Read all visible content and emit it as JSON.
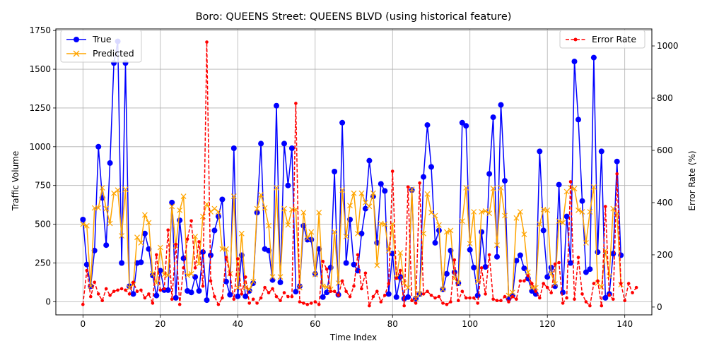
{
  "chart_data": {
    "type": "line",
    "title": "Boro: QUEENS Street: QUEENS BLVD (using historical feature)",
    "xlabel": "Time Index",
    "ylabel": "Traffic Volume",
    "y2label": "Error Rate (%)",
    "xlim": [
      -7,
      147
    ],
    "ylim": [
      -85,
      1760
    ],
    "y2lim": [
      -30,
      1065
    ],
    "xticks": [
      0,
      20,
      40,
      60,
      80,
      100,
      120,
      140
    ],
    "yticks": [
      0,
      250,
      500,
      750,
      1000,
      1250,
      1500,
      1750
    ],
    "y2ticks": [
      0,
      200,
      400,
      600,
      800,
      1000
    ],
    "grid": true,
    "legend_left_placement": "top-left",
    "legend_right_placement": "top-right",
    "colors": {
      "true": "#0000ff",
      "predicted": "#ffa500",
      "error": "#ff0000"
    },
    "series": [
      {
        "name": "True",
        "values": [
          530,
          240,
          100,
          330,
          1000,
          670,
          365,
          895,
          1540,
          1680,
          250,
          1540,
          100,
          50,
          250,
          255,
          440,
          340,
          170,
          40,
          200,
          75,
          75,
          640,
          25,
          525,
          280,
          70,
          60,
          160,
          70,
          320,
          10,
          300,
          460,
          550,
          660,
          130,
          45,
          990,
          35,
          300,
          35,
          70,
          120,
          575,
          1020,
          340,
          330,
          140,
          1265,
          125,
          1020,
          750,
          990,
          65,
          100,
          490,
          400,
          400,
          180,
          340,
          30,
          60,
          220,
          840,
          45,
          1155,
          250,
          530,
          240,
          200,
          440,
          600,
          910,
          680,
          380,
          760,
          715,
          50,
          310,
          30,
          160,
          20,
          30,
          720,
          20,
          50,
          805,
          1140,
          870,
          380,
          460,
          80,
          180,
          330,
          190,
          120,
          1155,
          1135,
          335,
          220,
          40,
          450,
          225,
          825,
          1190,
          290,
          1270,
          780,
          20,
          40,
          265,
          300,
          215,
          150,
          70,
          50,
          970,
          460,
          160,
          220,
          100,
          755,
          60,
          550,
          250,
          1550,
          1175,
          650,
          190,
          210,
          1575,
          320,
          970,
          25,
          50,
          310,
          905,
          300
        ]
      },
      {
        "name": "Predicted",
        "values": [
          500,
          490,
          100,
          605,
          605,
          735,
          600,
          505,
          700,
          720,
          425,
          725,
          90,
          110,
          415,
          380,
          560,
          510,
          180,
          120,
          350,
          175,
          170,
          615,
          360,
          590,
          680,
          170,
          180,
          420,
          245,
          550,
          630,
          580,
          600,
          580,
          340,
          340,
          180,
          680,
          90,
          440,
          90,
          80,
          130,
          600,
          690,
          605,
          490,
          160,
          735,
          160,
          600,
          495,
          595,
          595,
          90,
          575,
          410,
          450,
          175,
          575,
          100,
          95,
          80,
          450,
          120,
          720,
          420,
          620,
          700,
          440,
          700,
          640,
          615,
          700,
          235,
          505,
          500,
          330,
          500,
          155,
          315,
          120,
          90,
          725,
          20,
          50,
          440,
          695,
          575,
          555,
          495,
          80,
          450,
          460,
          150,
          120,
          520,
          735,
          375,
          580,
          130,
          580,
          585,
          570,
          730,
          365,
          735,
          555,
          40,
          60,
          540,
          580,
          435,
          190,
          90,
          90,
          500,
          595,
          590,
          180,
          115,
          520,
          510,
          710,
          735,
          730,
          590,
          580,
          380,
          580,
          740,
          120,
          95,
          330,
          165,
          600,
          570,
          110
        ]
      },
      {
        "name": "Error Rate",
        "values": [
          10,
          140,
          40,
          95,
          50,
          25,
          70,
          45,
          60,
          65,
          70,
          65,
          50,
          95,
          60,
          65,
          35,
          50,
          15,
          200,
          65,
          70,
          295,
          30,
          240,
          10,
          150,
          260,
          330,
          150,
          250,
          80,
          1015,
          100,
          40,
          10,
          35,
          190,
          125,
          30,
          185,
          50,
          115,
          15,
          30,
          15,
          35,
          75,
          55,
          70,
          40,
          25,
          55,
          40,
          40,
          780,
          20,
          15,
          10,
          15,
          20,
          10,
          175,
          145,
          60,
          60,
          45,
          100,
          60,
          40,
          80,
          200,
          70,
          130,
          5,
          40,
          60,
          20,
          45,
          90,
          520,
          110,
          140,
          5,
          460,
          25,
          15,
          475,
          50,
          60,
          45,
          35,
          40,
          15,
          10,
          20,
          180,
          25,
          60,
          35,
          35,
          35,
          15,
          150,
          50,
          200,
          30,
          25,
          25,
          40,
          20,
          40,
          30,
          100,
          100,
          120,
          90,
          60,
          35,
          90,
          75,
          55,
          165,
          170,
          15,
          35,
          480,
          30,
          190,
          50,
          20,
          5,
          90,
          100,
          5,
          385,
          45,
          30,
          510,
          90,
          25,
          90,
          55,
          75
        ]
      }
    ]
  }
}
